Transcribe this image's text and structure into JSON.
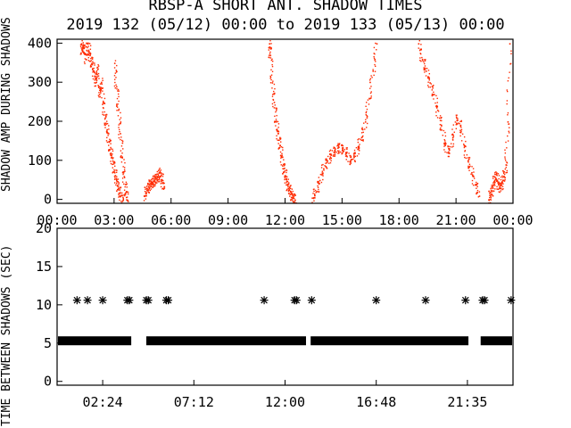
{
  "figure": {
    "title_line1": "RBSP-A SHORT ANT. SHADOW TIMES",
    "title_line2": "2019 132 (05/12) 00:00 to 2019 133 (05/13) 00:00"
  },
  "colors": {
    "axes": "#000000",
    "panel1_points": "#ff2a00",
    "panel2_points": "#000000",
    "background": "#ffffff"
  },
  "chart_data": [
    {
      "type": "scatter",
      "panel": "top",
      "ylabel": "SHADOW AMP DURING SHADOWS",
      "xlim": [
        0,
        24
      ],
      "ylim": [
        -10,
        410
      ],
      "yticks": [
        0,
        100,
        200,
        300,
        400
      ],
      "ytick_labels": [
        "0",
        "100",
        "200",
        "300",
        "400"
      ],
      "xticks": [
        0,
        3,
        6,
        9,
        12,
        15,
        18,
        21,
        24
      ],
      "xtick_labels": [
        "00:00",
        "03:00",
        "06:00",
        "09:00",
        "12:00",
        "15:00",
        "18:00",
        "21:00",
        "00:00"
      ],
      "series": [
        {
          "x": [
            1.25,
            1.3,
            1.4,
            1.5,
            1.6,
            1.7,
            1.8,
            1.9,
            2.0,
            2.1,
            2.2,
            2.3,
            2.4,
            2.5,
            2.6,
            2.7,
            2.8,
            2.9,
            3.0,
            3.1,
            3.2,
            3.3,
            3.45
          ],
          "y": [
            400,
            380,
            390,
            360,
            400,
            370,
            350,
            330,
            300,
            340,
            270,
            300,
            250,
            210,
            180,
            150,
            120,
            100,
            70,
            50,
            30,
            10,
            0
          ]
        },
        {
          "x": [
            3.0,
            3.1,
            3.2,
            3.3,
            3.4,
            3.5,
            3.6,
            3.65
          ],
          "y": [
            350,
            290,
            230,
            170,
            110,
            60,
            20,
            0
          ]
        },
        {
          "x": [
            4.55,
            4.7,
            4.8,
            4.9,
            5.0,
            5.1,
            5.2,
            5.3,
            5.4,
            5.5,
            5.55
          ],
          "y": [
            10,
            25,
            35,
            40,
            45,
            50,
            55,
            60,
            70,
            50,
            30
          ]
        },
        {
          "x": [
            11.15,
            11.2,
            11.3,
            11.4,
            11.5,
            11.6,
            11.7,
            11.8,
            11.9,
            12.0,
            12.1,
            12.2,
            12.3,
            12.4,
            12.5
          ],
          "y": [
            400,
            370,
            300,
            250,
            200,
            170,
            140,
            110,
            80,
            60,
            40,
            25,
            15,
            5,
            0
          ]
        },
        {
          "x": [
            13.4,
            13.6,
            13.8,
            14.0,
            14.2,
            14.4,
            14.6,
            14.8,
            15.0,
            15.2,
            15.4,
            15.6,
            15.8,
            16.0,
            16.2,
            16.4,
            16.6,
            16.8
          ],
          "y": [
            5,
            20,
            50,
            80,
            100,
            115,
            125,
            135,
            130,
            120,
            100,
            110,
            130,
            160,
            200,
            260,
            330,
            400
          ]
        },
        {
          "x": [
            19.0,
            19.2,
            19.4,
            19.6,
            19.8,
            20.0,
            20.2,
            20.4,
            20.6,
            20.8,
            21.0,
            21.2,
            21.4,
            21.6,
            21.8,
            22.0,
            22.2
          ],
          "y": [
            400,
            360,
            330,
            300,
            270,
            230,
            190,
            140,
            120,
            160,
            210,
            190,
            140,
            100,
            70,
            40,
            10
          ]
        },
        {
          "x": [
            22.7,
            22.8,
            22.9,
            23.0,
            23.1,
            23.2,
            23.3,
            23.4,
            23.5,
            23.6,
            23.7,
            23.8
          ],
          "y": [
            0,
            15,
            30,
            50,
            65,
            40,
            30,
            45,
            60,
            90,
            200,
            400
          ]
        }
      ]
    },
    {
      "type": "scatter",
      "panel": "bottom",
      "ylabel": "TIME BETWEEN SHADOWS (SEC)",
      "xlim": [
        0,
        24
      ],
      "ylim": [
        -0.5,
        20
      ],
      "yticks": [
        0,
        5,
        10,
        15,
        20
      ],
      "ytick_labels": [
        "0",
        "5",
        "10",
        "15",
        "20"
      ],
      "xticks": [
        2.4,
        7.2,
        12.0,
        16.8,
        21.6
      ],
      "xtick_labels": [
        "02:24",
        "07:12",
        "12:00",
        "16:48",
        "21:35"
      ],
      "series": [
        {
          "name_hidden": true,
          "x": [
            1.05,
            1.6,
            2.4,
            3.7,
            3.8,
            4.7,
            4.8,
            5.75,
            5.85,
            10.9,
            12.5,
            12.6,
            13.4,
            16.8,
            19.4,
            21.5,
            22.4,
            22.5,
            23.9
          ],
          "y": [
            10.6,
            10.6,
            10.6,
            10.6,
            10.6,
            10.6,
            10.6,
            10.6,
            10.6,
            10.6,
            10.6,
            10.6,
            10.6,
            10.6,
            10.6,
            10.6,
            10.6,
            10.6,
            10.6
          ]
        }
      ],
      "bands": [
        {
          "x": [
            0.0,
            3.95
          ],
          "y": 5.3
        },
        {
          "x": [
            4.65,
            13.15
          ],
          "y": 5.3
        },
        {
          "x": [
            13.3,
            21.7
          ],
          "y": 5.3
        },
        {
          "x": [
            22.25,
            24.0
          ],
          "y": 5.3
        }
      ]
    }
  ]
}
